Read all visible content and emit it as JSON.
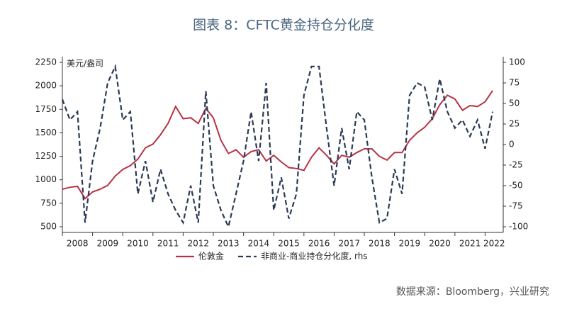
{
  "chart_data": {
    "type": "line",
    "title": "图表 8：CFTC黄金持仓分化度",
    "y_label": "美元/盎司",
    "source": "数据来源：Bloomberg，兴业研究",
    "x": [
      2008.0,
      2008.25,
      2008.5,
      2008.75,
      2009.0,
      2009.25,
      2009.5,
      2009.75,
      2010.0,
      2010.25,
      2010.5,
      2010.75,
      2011.0,
      2011.25,
      2011.5,
      2011.75,
      2012.0,
      2012.25,
      2012.5,
      2012.75,
      2013.0,
      2013.25,
      2013.5,
      2013.75,
      2014.0,
      2014.25,
      2014.5,
      2014.75,
      2015.0,
      2015.25,
      2015.5,
      2015.75,
      2016.0,
      2016.25,
      2016.5,
      2016.75,
      2017.0,
      2017.25,
      2017.5,
      2017.75,
      2018.0,
      2018.25,
      2018.5,
      2018.75,
      2019.0,
      2019.25,
      2019.5,
      2019.75,
      2020.0,
      2020.25,
      2020.5,
      2020.75,
      2021.0,
      2021.25,
      2021.5,
      2021.75,
      2022.0,
      2022.25
    ],
    "series": [
      {
        "name": "伦敦金",
        "color": "#b83244",
        "axis": "y",
        "dash": false,
        "values": [
          900,
          920,
          930,
          800,
          870,
          900,
          940,
          1040,
          1110,
          1150,
          1220,
          1340,
          1380,
          1480,
          1600,
          1780,
          1650,
          1660,
          1600,
          1760,
          1660,
          1420,
          1280,
          1320,
          1240,
          1300,
          1320,
          1200,
          1260,
          1190,
          1130,
          1120,
          1100,
          1240,
          1340,
          1260,
          1170,
          1260,
          1240,
          1290,
          1330,
          1330,
          1250,
          1210,
          1290,
          1290,
          1420,
          1500,
          1560,
          1650,
          1800,
          1900,
          1860,
          1740,
          1790,
          1780,
          1830,
          1950
        ]
      },
      {
        "name": "非商业-商业持仓分化度, rhs",
        "color": "#2b3a55",
        "axis": "y2",
        "dash": true,
        "values": [
          55,
          30,
          40,
          -95,
          -20,
          20,
          75,
          95,
          30,
          40,
          -60,
          -20,
          -70,
          -30,
          -60,
          -80,
          -95,
          -50,
          -95,
          65,
          -50,
          -80,
          -100,
          -60,
          -20,
          40,
          -20,
          75,
          -80,
          -40,
          -90,
          -60,
          60,
          95,
          95,
          20,
          -50,
          20,
          -30,
          40,
          30,
          -40,
          -95,
          -90,
          -30,
          -60,
          60,
          75,
          70,
          30,
          80,
          40,
          20,
          30,
          10,
          30,
          -5,
          40
        ]
      }
    ],
    "xlim": [
      2008,
      2022.6
    ],
    "xticks": [
      2008,
      2009,
      2010,
      2011,
      2012,
      2013,
      2014,
      2015,
      2016,
      2017,
      2018,
      2019,
      2020,
      2021,
      2022
    ],
    "ylim": [
      500,
      2250
    ],
    "yticks": [
      500,
      750,
      1000,
      1250,
      1500,
      1750,
      2000,
      2250
    ],
    "y2lim": [
      -100,
      100
    ],
    "y2ticks": [
      -100,
      -75,
      -50,
      -25,
      0,
      25,
      50,
      75,
      100
    ],
    "grid": false,
    "legend": "bottom"
  }
}
